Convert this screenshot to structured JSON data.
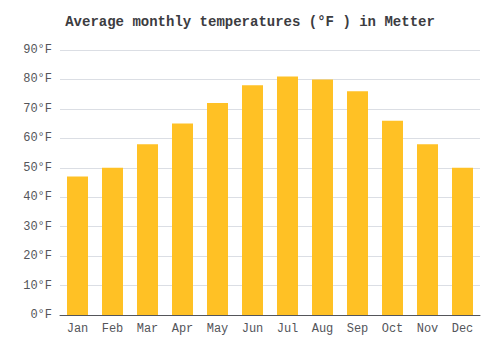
{
  "chart_data": {
    "type": "bar",
    "title": "Average monthly temperatures (°F ) in Metter",
    "categories": [
      "Jan",
      "Feb",
      "Mar",
      "Apr",
      "May",
      "Jun",
      "Jul",
      "Aug",
      "Sep",
      "Oct",
      "Nov",
      "Dec"
    ],
    "values": [
      47,
      50,
      58,
      65,
      72,
      78,
      81,
      80,
      76,
      66,
      58,
      50
    ],
    "color": "#FFC125",
    "ylim": [
      0,
      90
    ],
    "yticks": [
      {
        "value": 0,
        "label": "0°F"
      },
      {
        "value": 10,
        "label": "10°F"
      },
      {
        "value": 20,
        "label": "20°F"
      },
      {
        "value": 30,
        "label": "30°F"
      },
      {
        "value": 40,
        "label": "40°F"
      },
      {
        "value": 50,
        "label": "50°F"
      },
      {
        "value": 60,
        "label": "60°F"
      },
      {
        "value": 70,
        "label": "70°F"
      },
      {
        "value": 80,
        "label": "80°F"
      },
      {
        "value": 90,
        "label": "90°F"
      }
    ],
    "grid": true
  }
}
